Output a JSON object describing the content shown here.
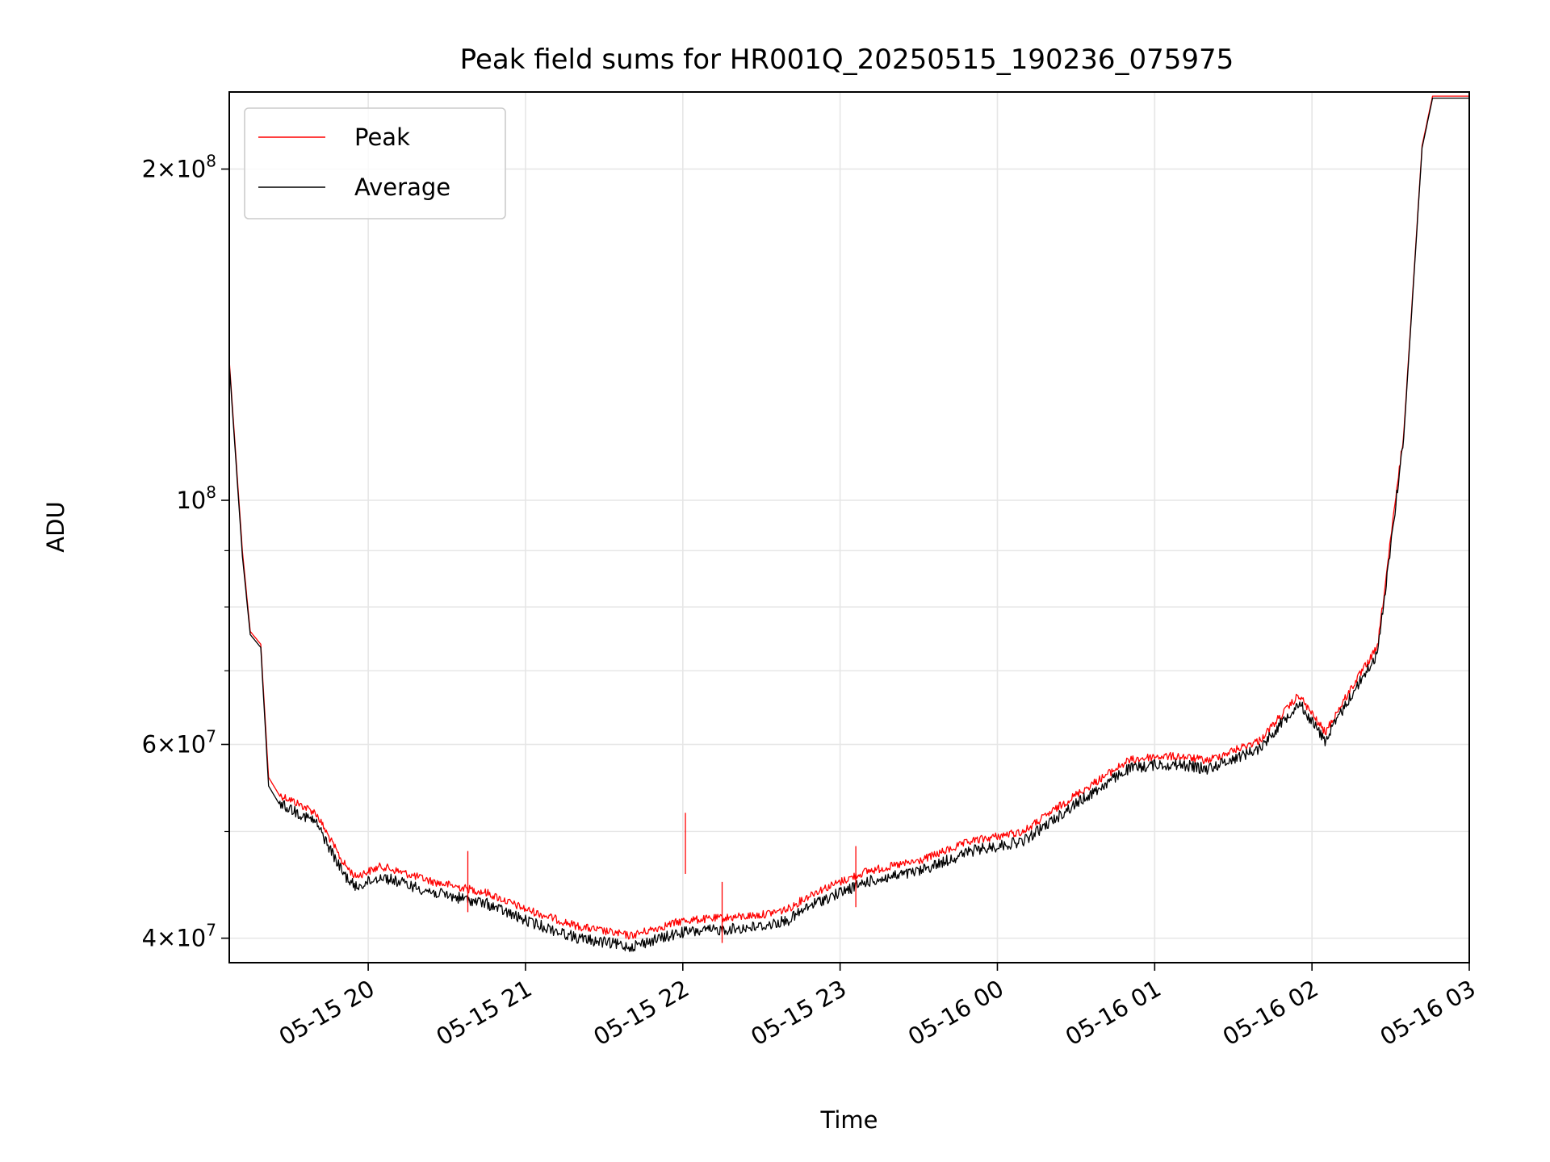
{
  "chart_data": {
    "type": "line",
    "title": "Peak field sums for HR001Q_20250515_190236_075975",
    "xlabel": "Time",
    "ylabel": "ADU",
    "yscale": "log",
    "ylim": [
      38000000,
      235000000
    ],
    "xlim": [
      "2025-05-15 19:07",
      "2025-05-16 03:00"
    ],
    "grid": true,
    "legend_position": "upper left",
    "x_ticks": [
      {
        "t": "2025-05-15 20:00",
        "label": "05-15 20"
      },
      {
        "t": "2025-05-15 21:00",
        "label": "05-15 21"
      },
      {
        "t": "2025-05-15 22:00",
        "label": "05-15 22"
      },
      {
        "t": "2025-05-15 23:00",
        "label": "05-15 23"
      },
      {
        "t": "2025-05-16 00:00",
        "label": "05-16 00"
      },
      {
        "t": "2025-05-16 01:00",
        "label": "05-16 01"
      },
      {
        "t": "2025-05-16 02:00",
        "label": "05-16 02"
      },
      {
        "t": "2025-05-16 03:00",
        "label": "05-16 03"
      }
    ],
    "y_major_ticks": [
      {
        "value": 40000000,
        "mantissa": "4",
        "exponent": "7"
      },
      {
        "value": 60000000,
        "mantissa": "6",
        "exponent": "7"
      },
      {
        "value": 100000000,
        "mantissa": "",
        "exponent": "8"
      },
      {
        "value": 200000000,
        "mantissa": "2",
        "exponent": "8"
      }
    ],
    "y_minor_ticks": [
      50000000,
      70000000,
      80000000,
      90000000
    ],
    "colors": {
      "Peak": "#ff0000",
      "Average": "#000000"
    },
    "series": [
      {
        "name": "Peak",
        "color": "#ff0000",
        "x": [
          "2025-05-15 19:07",
          "2025-05-15 19:12",
          "2025-05-15 19:15",
          "2025-05-15 19:19",
          "2025-05-15 19:22",
          "2025-05-15 19:26",
          "2025-05-15 19:30",
          "2025-05-15 19:40",
          "2025-05-15 19:50",
          "2025-05-15 19:55",
          "2025-05-15 20:05",
          "2025-05-15 20:25",
          "2025-05-15 20:45",
          "2025-05-15 21:00",
          "2025-05-15 21:20",
          "2025-05-15 21:40",
          "2025-05-15 22:00",
          "2025-05-15 22:20",
          "2025-05-15 22:30",
          "2025-05-15 22:40",
          "2025-05-15 22:50",
          "2025-05-15 23:10",
          "2025-05-15 23:30",
          "2025-05-15 23:50",
          "2025-05-16 00:10",
          "2025-05-16 00:30",
          "2025-05-16 00:50",
          "2025-05-16 01:00",
          "2025-05-16 01:10",
          "2025-05-16 01:20",
          "2025-05-16 01:40",
          "2025-05-16 01:55",
          "2025-05-16 02:05",
          "2025-05-16 02:15",
          "2025-05-16 02:25",
          "2025-05-16 02:35",
          "2025-05-16 02:42",
          "2025-05-16 02:46"
        ],
        "values": [
          134000000,
          90000000,
          76000000,
          74000000,
          56000000,
          54000000,
          53500000,
          52000000,
          47000000,
          45500000,
          46500000,
          45000000,
          44000000,
          42500000,
          41000000,
          40200000,
          41500000,
          41800000,
          42000000,
          42500000,
          44000000,
          46000000,
          47000000,
          49000000,
          50000000,
          54000000,
          58000000,
          58500000,
          58500000,
          58000000,
          60500000,
          66500000,
          61500000,
          67500000,
          73500000,
          115000000,
          210000000,
          233000000
        ]
      },
      {
        "name": "Average",
        "color": "#000000",
        "x": [
          "2025-05-15 19:07",
          "2025-05-15 19:12",
          "2025-05-15 19:15",
          "2025-05-15 19:19",
          "2025-05-15 19:22",
          "2025-05-15 19:26",
          "2025-05-15 19:30",
          "2025-05-15 19:40",
          "2025-05-15 19:50",
          "2025-05-15 19:55",
          "2025-05-15 20:05",
          "2025-05-15 20:25",
          "2025-05-15 20:45",
          "2025-05-15 21:00",
          "2025-05-15 21:20",
          "2025-05-15 21:40",
          "2025-05-15 22:00",
          "2025-05-15 22:20",
          "2025-05-15 22:30",
          "2025-05-15 22:40",
          "2025-05-15 22:50",
          "2025-05-15 23:10",
          "2025-05-15 23:30",
          "2025-05-15 23:50",
          "2025-05-16 00:10",
          "2025-05-16 00:30",
          "2025-05-16 00:50",
          "2025-05-16 01:00",
          "2025-05-16 01:10",
          "2025-05-16 01:20",
          "2025-05-16 01:40",
          "2025-05-16 01:55",
          "2025-05-16 02:05",
          "2025-05-16 02:15",
          "2025-05-16 02:25",
          "2025-05-16 02:35",
          "2025-05-16 02:42",
          "2025-05-16 02:46"
        ],
        "values": [
          133000000,
          89000000,
          75500000,
          73500000,
          55000000,
          53000000,
          52500000,
          51000000,
          46000000,
          44500000,
          45500000,
          44000000,
          43000000,
          41500000,
          40000000,
          39300000,
          40500000,
          40800000,
          41000000,
          41500000,
          43000000,
          45000000,
          46000000,
          48000000,
          49000000,
          53000000,
          57000000,
          57500000,
          57500000,
          57000000,
          59500000,
          65500000,
          60500000,
          66500000,
          72500000,
          114000000,
          209000000,
          232000000
        ]
      }
    ],
    "spikes": [
      {
        "series": "Peak",
        "x": "2025-05-15 20:38",
        "value": 48000000
      },
      {
        "series": "Peak",
        "x": "2025-05-15 22:01",
        "value": 52000000
      },
      {
        "series": "Peak",
        "x": "2025-05-15 22:15",
        "value": 45000000
      },
      {
        "series": "Peak",
        "x": "2025-05-15 23:06",
        "value": 48500000
      }
    ]
  }
}
